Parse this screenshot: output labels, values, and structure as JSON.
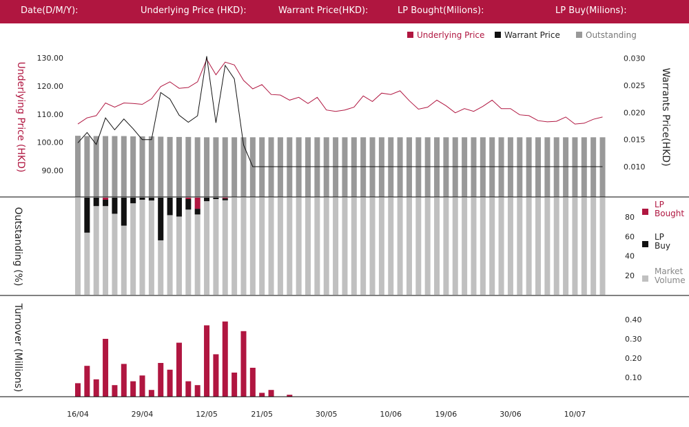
{
  "header": {
    "date_label": "Date(D/M/Y):",
    "underlying_label": "Underlying Price (HKD):",
    "warrant_label": "Warrant  Price(HKD):",
    "lp_bought_label": "LP Bought(Milions):",
    "lp_buy_label": "LP Buy(Milions):"
  },
  "colors": {
    "brand": "#b01640",
    "warrant": "#111111",
    "outstanding": "#999999",
    "market_volume": "#c0c0c0"
  },
  "chart_data": [
    {
      "type": "line",
      "legend": [
        {
          "name": "Underlying Price",
          "color": "#b01640"
        },
        {
          "name": "Warrant  Price",
          "color": "#111111"
        },
        {
          "name": "Outstanding",
          "color": "#999999"
        }
      ],
      "left_axis": {
        "title": "Underlying Price (HKD)",
        "ticks": [
          "130.00",
          "120.00",
          "110.00",
          "100.00",
          "90.00"
        ],
        "tick_values": [
          130,
          120,
          110,
          100,
          90
        ],
        "ylim": [
          80.6,
          131
        ]
      },
      "right_axis": {
        "title": "Warrants  Price(HKD)",
        "ticks": [
          "0.030",
          "0.025",
          "0.020",
          "0.015",
          "0.010"
        ],
        "tick_values": [
          0.03,
          0.025,
          0.02,
          0.015,
          0.01
        ],
        "ylim": [
          0.0044,
          0.0306
        ]
      },
      "underlying": [
        106.5,
        108.7,
        109.5,
        114,
        112.5,
        114,
        113.8,
        113.5,
        115.5,
        119.8,
        121.5,
        119.2,
        119.5,
        121.5,
        129.5,
        124,
        128.5,
        127.5,
        122,
        119,
        120.5,
        117,
        116.8,
        115,
        116,
        113.8,
        116,
        111.5,
        111,
        111.5,
        112.5,
        116.5,
        114.5,
        117.5,
        117,
        118.3,
        114.8,
        111.8,
        112.5,
        115,
        113,
        110.5,
        112,
        111,
        112.8,
        115,
        112,
        112,
        109.8,
        109.5,
        107.7,
        107.3,
        107.5,
        109,
        106.5,
        106.8,
        108.2,
        109
      ],
      "warrant": [
        0.0144,
        0.0163,
        0.0141,
        0.019,
        0.0168,
        0.0188,
        0.017,
        0.015,
        0.015,
        0.0237,
        0.0225,
        0.0195,
        0.0182,
        0.0194,
        0.0304,
        0.0181,
        0.0287,
        0.0262,
        0.014,
        0.01,
        0.01,
        0.01,
        0.01,
        0.01,
        0.01,
        0.01,
        0.01,
        0.01,
        0.01,
        0.01,
        0.01,
        0.01,
        0.01,
        0.01,
        0.01,
        0.01,
        0.01,
        0.01,
        0.01,
        0.01,
        0.01,
        0.01,
        0.01,
        0.01,
        0.01,
        0.01,
        0.01,
        0.01,
        0.01,
        0.01,
        0.01,
        0.01,
        0.01,
        0.01,
        0.01,
        0.01,
        0.01,
        0.01
      ]
    },
    {
      "type": "bar",
      "legend": [
        {
          "name": "LP Bought",
          "color": "#b01640"
        },
        {
          "name": "LP Buy",
          "color": "#111111"
        },
        {
          "name": "Market Volume",
          "color": "#c0c0c0"
        }
      ],
      "left_axis_title": "Outstanding (%)",
      "right_ticks": [
        "80",
        "60",
        "40",
        "20"
      ],
      "right_tick_values": [
        80,
        60,
        40,
        20
      ],
      "outstanding_ylim": [
        0,
        100
      ],
      "lp_bought": [
        0,
        0,
        0,
        3,
        0,
        0,
        0,
        0,
        0,
        0,
        0,
        0,
        2,
        16,
        0,
        0,
        1.2,
        0,
        0,
        0,
        0,
        0,
        0,
        0,
        0,
        0,
        0,
        0,
        0,
        0,
        0,
        0,
        0,
        0,
        0,
        0,
        0,
        0,
        0,
        0,
        0,
        0,
        0,
        0,
        0,
        0,
        0,
        0,
        0,
        0,
        0,
        0,
        0,
        0,
        0,
        0,
        0,
        0
      ],
      "lp_buy": [
        0,
        50,
        12,
        9,
        23,
        40,
        8,
        3,
        4,
        61,
        25,
        27,
        15,
        8,
        5,
        2,
        2.5,
        0,
        0,
        0,
        0,
        0,
        0,
        0,
        0,
        0,
        0,
        0,
        0,
        0,
        0,
        0,
        0,
        0,
        0,
        0,
        0,
        0,
        0,
        0,
        0,
        0,
        0,
        0,
        0,
        0,
        0,
        0,
        0,
        0,
        0,
        0,
        0,
        0,
        0,
        0,
        0,
        0
      ]
    },
    {
      "type": "bar",
      "series": [
        {
          "values": [
            0.07,
            0.16,
            0.09,
            0.3,
            0.06,
            0.17,
            0.08,
            0.11,
            0.035,
            0.175,
            0.14,
            0.28,
            0.08,
            0.06,
            0.37,
            0.22,
            0.39,
            0.125,
            0.34,
            0.15,
            0.02,
            0.035,
            0,
            0.01,
            0,
            0,
            0,
            0,
            0,
            0,
            0,
            0,
            0,
            0,
            0,
            0,
            0,
            0,
            0,
            0,
            0,
            0,
            0,
            0,
            0,
            0,
            0,
            0,
            0,
            0,
            0,
            0,
            0,
            0,
            0,
            0,
            0,
            0
          ]
        }
      ],
      "ylabel": "Turnover (Millions)",
      "ticks": [
        "0.40",
        "0.30",
        "0.20",
        "0.10"
      ],
      "tick_values": [
        0.4,
        0.3,
        0.2,
        0.1
      ],
      "ylim": [
        0,
        0.4
      ]
    }
  ],
  "x_axis": {
    "labels": [
      "16/04",
      "29/04",
      "12/05",
      "21/05",
      "30/05",
      "10/06",
      "19/06",
      "30/06",
      "10/07"
    ],
    "label_indices": [
      0,
      7,
      14,
      20,
      27,
      34,
      40,
      47,
      54
    ]
  },
  "outstanding_pct": [
    101,
    100.5,
    100.5,
    100.5,
    100.5,
    100.5,
    100,
    100,
    100,
    99.5,
    99,
    99,
    99,
    98.5,
    98.5,
    98.5,
    98.5,
    98.5,
    98.5,
    98.5,
    98.5,
    98.5,
    98.5,
    98.5,
    98.5,
    98.5,
    98.5,
    98.5,
    98.5,
    98.5,
    98.5,
    98.5,
    98.5,
    98.5,
    98.5,
    98.5,
    98.5,
    98.5,
    98.5,
    98.5,
    98.5,
    98.5,
    98.5,
    98.5,
    98.5,
    98.5,
    98.5,
    98.5,
    98.5,
    98.5,
    98.5,
    98.5,
    98.5,
    98.5,
    98.5,
    98.5,
    98.5,
    98.5
  ],
  "outstanding_scale": {
    "ylim": [
      0,
      135
    ]
  }
}
